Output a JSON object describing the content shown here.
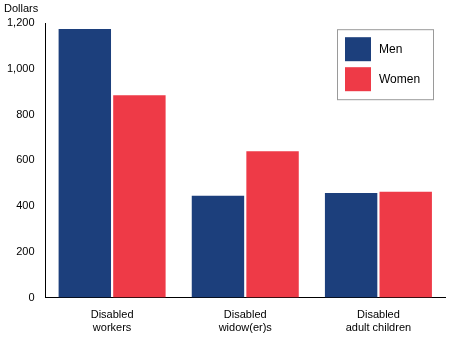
{
  "chart_data": {
    "type": "bar",
    "ylabel": "Dollars",
    "categories": [
      "Disabled workers",
      "Disabled widow(er)s",
      "Disabled adult children"
    ],
    "series": [
      {
        "name": "Men",
        "color": "#1c3f7c",
        "values": [
          1175,
          445,
          457
        ]
      },
      {
        "name": "Women",
        "color": "#ee3a47",
        "values": [
          885,
          640,
          463
        ]
      }
    ],
    "ylim": [
      0,
      1200
    ],
    "yticks": [
      0,
      200,
      400,
      600,
      800,
      {
        "value": 1000,
        "label": "1,000"
      },
      {
        "value": 1200,
        "label": "1,200"
      }
    ],
    "grid": false,
    "legend": "upper right"
  }
}
